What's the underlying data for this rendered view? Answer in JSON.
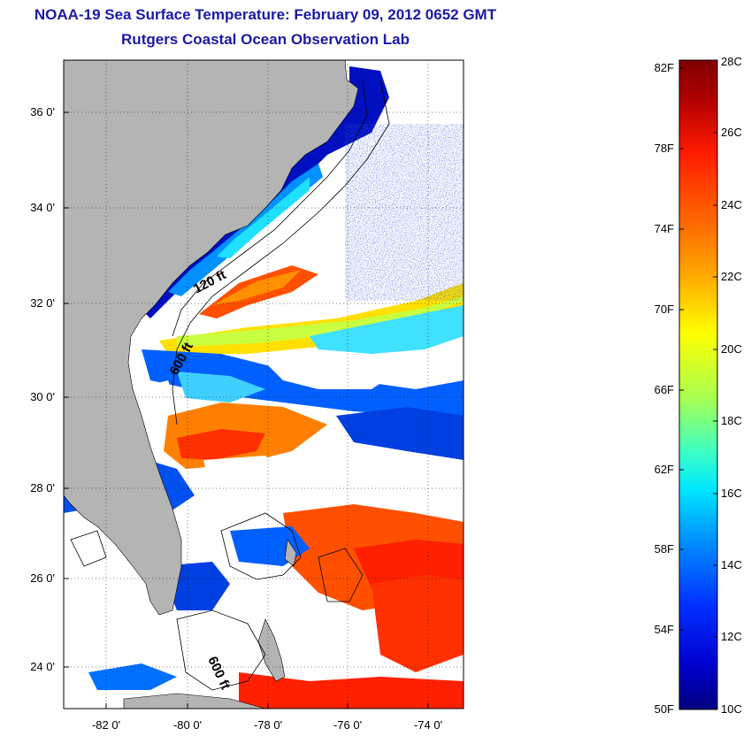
{
  "header": {
    "title": "NOAA-19 Sea Surface Temperature:  February 09, 2012 0652 GMT",
    "subtitle": "Rutgers Coastal Ocean Observation Lab"
  },
  "map": {
    "lon_ticks": [
      "-82 0'",
      "-80 0'",
      "-78 0'",
      "-76 0'",
      "-74 0'"
    ],
    "lat_ticks": [
      "36 0'",
      "34 0'",
      "32 0'",
      "30 0'",
      "28 0'",
      "26 0'",
      "24 0'"
    ],
    "depth_labels": [
      "120 ft",
      "600 ft",
      "600 ft"
    ]
  },
  "colorbar": {
    "fahrenheit": [
      "82F",
      "78F",
      "74F",
      "70F",
      "66F",
      "62F",
      "58F",
      "54F",
      "50F"
    ],
    "celsius": [
      "28C",
      "26C",
      "24C",
      "22C",
      "20C",
      "18C",
      "16C",
      "14C",
      "12C",
      "10C"
    ],
    "colors": [
      "#800000",
      "#c00000",
      "#ff2000",
      "#ff6000",
      "#ff9a00",
      "#ffd000",
      "#ffff00",
      "#c8ff38",
      "#80ff80",
      "#38ffc8",
      "#00e0ff",
      "#00a0ff",
      "#0060ff",
      "#0020ff",
      "#0000c8",
      "#000080"
    ]
  },
  "colors": {
    "land": "#b4b4b4",
    "title": "#1a1aa6",
    "cloud": "#ffffff"
  }
}
